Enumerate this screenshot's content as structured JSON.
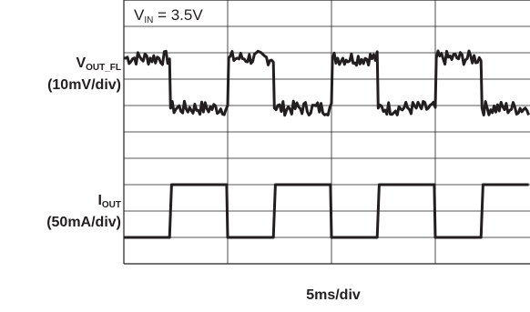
{
  "chart_data": {
    "type": "line",
    "title": "",
    "annotation": {
      "text_main": "V",
      "text_sub": "IN",
      "text_rest": " = 3.5V"
    },
    "xlabel": "5ms/div",
    "grid": true,
    "x_divisions": 4,
    "y_divisions": 10,
    "series": [
      {
        "name_main": "V",
        "name_sub": "OUT_FL",
        "scale": "(10mV/div)",
        "color": "#231f20",
        "noisy": true,
        "x": [
          0,
          0.44,
          0.45,
          1.0,
          1.01,
          1.44,
          1.45,
          2.0,
          2.01,
          2.44,
          2.45,
          3.0,
          3.01,
          3.44,
          3.45,
          3.9
        ],
        "y": [
          7.8,
          7.8,
          5.9,
          5.9,
          7.8,
          7.8,
          5.9,
          5.9,
          7.8,
          7.8,
          5.9,
          5.9,
          7.8,
          7.8,
          5.9,
          5.9
        ]
      },
      {
        "name_main": "I",
        "name_sub": "OUT",
        "scale": "(50mA/div)",
        "color": "#231f20",
        "noisy": false,
        "x": [
          0,
          0.44,
          0.46,
          0.99,
          1.0,
          1.44,
          1.46,
          1.99,
          2.0,
          2.44,
          2.46,
          2.99,
          3.0,
          3.44,
          3.46,
          3.9
        ],
        "y": [
          1.0,
          1.0,
          3.0,
          3.0,
          1.0,
          1.0,
          3.0,
          3.0,
          1.0,
          1.0,
          3.0,
          3.0,
          1.0,
          1.0,
          3.0,
          3.0
        ]
      }
    ]
  }
}
